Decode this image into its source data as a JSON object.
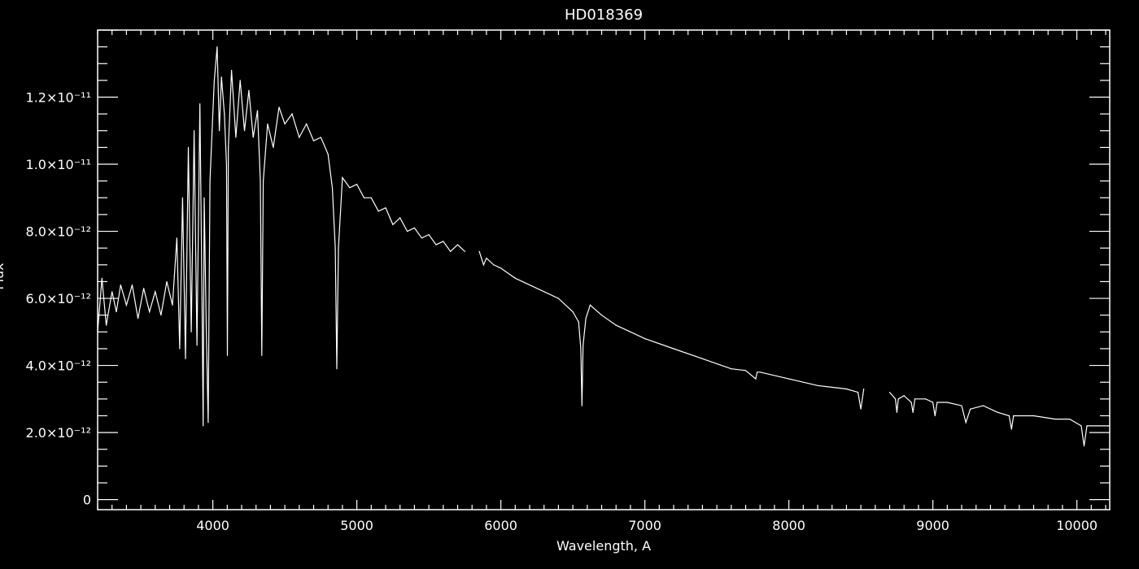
{
  "chart_data": {
    "type": "line",
    "title": "HD018369",
    "xlabel": "Wavelength, A",
    "ylabel": "Flux",
    "xlim": [
      3200,
      10228
    ],
    "ylim": [
      -3e-13,
      1.4e-11
    ],
    "grid": false,
    "background": "#000000",
    "foreground": "#ffffff",
    "x_ticks": [
      {
        "value": 4000,
        "label": "4000"
      },
      {
        "value": 5000,
        "label": "5000"
      },
      {
        "value": 6000,
        "label": "6000"
      },
      {
        "value": 7000,
        "label": "7000"
      },
      {
        "value": 8000,
        "label": "8000"
      },
      {
        "value": 9000,
        "label": "9000"
      },
      {
        "value": 10000,
        "label": "10000"
      }
    ],
    "x_minor_step": 100,
    "y_ticks": [
      {
        "value": 0,
        "label": "0"
      },
      {
        "value": 2e-12,
        "label": "2.0×10⁻¹²"
      },
      {
        "value": 4e-12,
        "label": "4.0×10⁻¹²"
      },
      {
        "value": 6e-12,
        "label": "6.0×10⁻¹²"
      },
      {
        "value": 8e-12,
        "label": "8.0×10⁻¹²"
      },
      {
        "value": 1e-11,
        "label": "1.0×10⁻¹¹"
      },
      {
        "value": 1.2e-11,
        "label": "1.2×10⁻¹¹"
      }
    ],
    "y_minor_step": 5e-13,
    "series": [
      {
        "segments": [
          {
            "x": [
              3200,
              3230,
              3260,
              3300,
              3330,
              3360,
              3400,
              3440,
              3480,
              3520,
              3560,
              3600,
              3640,
              3680,
              3720,
              3750,
              3770,
              3790,
              3810,
              3830,
              3850,
              3870,
              3890,
              3910,
              3925,
              3933,
              3940,
              3955,
              3968,
              3980,
              3995,
              4010,
              4030,
              4045,
              4060,
              4080,
              4095,
              4101,
              4108,
              4130,
              4160,
              4190,
              4220,
              4250,
              4280,
              4310,
              4330,
              4340,
              4350,
              4380,
              4420,
              4460,
              4500,
              4550,
              4600,
              4650,
              4700,
              4750,
              4800,
              4830,
              4850,
              4861,
              4872,
              4900,
              4950,
              5000,
              5050,
              5100,
              5150,
              5200,
              5250,
              5300,
              5350,
              5400,
              5450,
              5500,
              5550,
              5600,
              5650,
              5700,
              5750
            ],
            "y": [
              5e-12,
              6.6e-12,
              5.2e-12,
              6.2e-12,
              5.6e-12,
              6.4e-12,
              5.8e-12,
              6.4e-12,
              5.4e-12,
              6.3e-12,
              5.6e-12,
              6.2e-12,
              5.5e-12,
              6.5e-12,
              5.8e-12,
              7.8e-12,
              4.5e-12,
              9e-12,
              4.2e-12,
              1.05e-11,
              5e-12,
              1.1e-11,
              4.6e-12,
              1.18e-11,
              6e-12,
              2.2e-12,
              9e-12,
              5e-12,
              2.3e-12,
              9.5e-12,
              1.1e-11,
              1.25e-11,
              1.35e-11,
              1.1e-11,
              1.26e-11,
              1.15e-11,
              1e-11,
              4.3e-12,
              1.05e-11,
              1.28e-11,
              1.08e-11,
              1.25e-11,
              1.1e-11,
              1.22e-11,
              1.08e-11,
              1.16e-11,
              9.5e-12,
              4.3e-12,
              9.5e-12,
              1.12e-11,
              1.05e-11,
              1.17e-11,
              1.12e-11,
              1.15e-11,
              1.08e-11,
              1.12e-11,
              1.07e-11,
              1.08e-11,
              1.03e-11,
              9.3e-12,
              7.5e-12,
              3.9e-12,
              7.5e-12,
              9.6e-12,
              9.3e-12,
              9.4e-12,
              9e-12,
              9e-12,
              8.6e-12,
              8.7e-12,
              8.2e-12,
              8.4e-12,
              8e-12,
              8.1e-12,
              7.8e-12,
              7.9e-12,
              7.6e-12,
              7.7e-12,
              7.4e-12,
              7.6e-12,
              7.4e-12
            ]
          },
          {
            "x": [
              5850,
              5880,
              5900,
              5950,
              6000,
              6100,
              6200,
              6300,
              6400,
              6500,
              6540,
              6555,
              6563,
              6571,
              6590,
              6620,
              6700,
              6800,
              6900,
              7000,
              7200,
              7400,
              7600,
              7700,
              7770,
              7780,
              7800,
              8000,
              8200,
              8400,
              8480,
              8500,
              8520
            ],
            "y": [
              7.4e-12,
              7e-12,
              7.2e-12,
              7e-12,
              6.9e-12,
              6.6e-12,
              6.4e-12,
              6.2e-12,
              6e-12,
              5.6e-12,
              5.3e-12,
              4.5e-12,
              2.8e-12,
              4.6e-12,
              5.4e-12,
              5.8e-12,
              5.5e-12,
              5.2e-12,
              5e-12,
              4.8e-12,
              4.5e-12,
              4.2e-12,
              3.9e-12,
              3.85e-12,
              3.6e-12,
              3.8e-12,
              3.8e-12,
              3.6e-12,
              3.4e-12,
              3.3e-12,
              3.2e-12,
              2.7e-12,
              3.3e-12
            ]
          },
          {
            "x": [
              8700,
              8740,
              8750,
              8760,
              8800,
              8850,
              8862,
              8875,
              8950,
              9000,
              9015,
              9030,
              9100,
              9200,
              9229,
              9260,
              9350,
              9450,
              9530,
              9546,
              9560,
              9700,
              9850,
              9950,
              10030,
              10050,
              10070,
              10150,
              10228
            ],
            "y": [
              3.2e-12,
              3e-12,
              2.6e-12,
              3e-12,
              3.1e-12,
              2.9e-12,
              2.6e-12,
              3e-12,
              3e-12,
              2.9e-12,
              2.5e-12,
              2.9e-12,
              2.9e-12,
              2.8e-12,
              2.3e-12,
              2.7e-12,
              2.8e-12,
              2.6e-12,
              2.5e-12,
              2.1e-12,
              2.5e-12,
              2.5e-12,
              2.4e-12,
              2.4e-12,
              2.2e-12,
              1.6e-12,
              2.2e-12,
              2.2e-12,
              2.2e-12
            ]
          }
        ]
      }
    ]
  }
}
